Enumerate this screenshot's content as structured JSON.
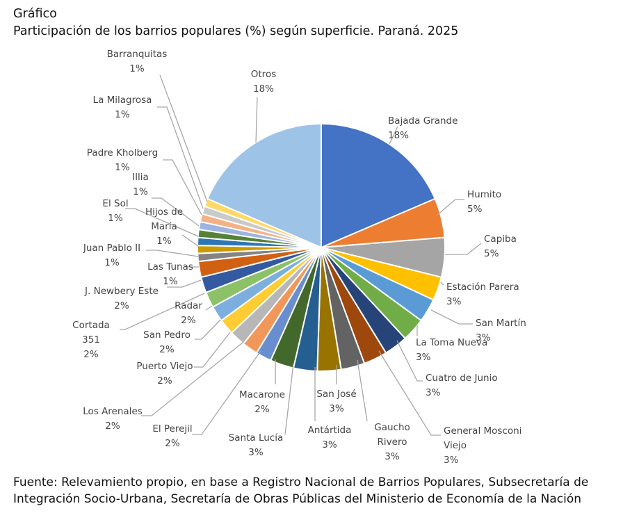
{
  "header": {
    "label": "Gráfico",
    "title": "Participación de los barrios populares (%) según superficie. Paraná. 2025"
  },
  "chart_data": {
    "type": "pie",
    "title": "Participación de los barrios populares (%) según superficie. Paraná. 2025",
    "slices": [
      {
        "label": "Bajada Grande",
        "value": 18,
        "value_label": "18%",
        "color": "#4472C4"
      },
      {
        "label": "Humito",
        "value": 5,
        "value_label": "5%",
        "color": "#ED7D31"
      },
      {
        "label": "Capiba",
        "value": 5,
        "value_label": "5%",
        "color": "#A5A5A5"
      },
      {
        "label": "Estación Parera",
        "value": 3,
        "value_label": "3%",
        "color": "#FFC000"
      },
      {
        "label": "San Martín",
        "value": 3,
        "value_label": "3%",
        "color": "#5B9BD5"
      },
      {
        "label": "La Toma Nueva",
        "value": 3,
        "value_label": "3%",
        "color": "#70AD47"
      },
      {
        "label": "Cuatro de Junio",
        "value": 3,
        "value_label": "3%",
        "color": "#264478"
      },
      {
        "label": "General Mosconi Viejo",
        "value": 3,
        "value_label": "3%",
        "color": "#9E480E"
      },
      {
        "label": "Gaucho Rivero",
        "value": 3,
        "value_label": "3%",
        "color": "#636363"
      },
      {
        "label": "San José",
        "value": 3,
        "value_label": "3%",
        "color": "#997300"
      },
      {
        "label": "Antártida",
        "value": 3,
        "value_label": "3%",
        "color": "#255E91"
      },
      {
        "label": "Santa Lucía",
        "value": 3,
        "value_label": "3%",
        "color": "#43682B"
      },
      {
        "label": "Macarone",
        "value": 2,
        "value_label": "2%",
        "color": "#698ED0"
      },
      {
        "label": "El Perejil",
        "value": 2,
        "value_label": "2%",
        "color": "#F1975A"
      },
      {
        "label": "Los Arenales",
        "value": 2,
        "value_label": "2%",
        "color": "#B7B7B7"
      },
      {
        "label": "Puerto Viejo",
        "value": 2,
        "value_label": "2%",
        "color": "#FFCD33"
      },
      {
        "label": "San Pedro",
        "value": 2,
        "value_label": "2%",
        "color": "#7CAFDD"
      },
      {
        "label": "Radar",
        "value": 2,
        "value_label": "2%",
        "color": "#8CC168"
      },
      {
        "label": "Cortada 351",
        "value": 2,
        "value_label": "2%",
        "color": "#335AA1"
      },
      {
        "label": "J. Newbery Este",
        "value": 2,
        "value_label": "2%",
        "color": "#D26012"
      },
      {
        "label": "Las Tunas",
        "value": 1,
        "value_label": "1%",
        "color": "#848484"
      },
      {
        "label": "Juan Pablo II",
        "value": 1,
        "value_label": "1%",
        "color": "#CC9A00"
      },
      {
        "label": "Hijos de María",
        "value": 1,
        "value_label": "1%",
        "color": "#2E75B6"
      },
      {
        "label": "El Sol",
        "value": 1,
        "value_label": "1%",
        "color": "#548235"
      },
      {
        "label": "Illia",
        "value": 1,
        "value_label": "1%",
        "color": "#9DB3E0"
      },
      {
        "label": "Padre Kholberg",
        "value": 1,
        "value_label": "1%",
        "color": "#F4B183"
      },
      {
        "label": "La Milagrosa",
        "value": 1,
        "value_label": "1%",
        "color": "#C9C9C9"
      },
      {
        "label": "Barranquitas",
        "value": 1,
        "value_label": "1%",
        "color": "#FFD966"
      },
      {
        "label": "Otros",
        "value": 18,
        "value_label": "18%",
        "color": "#9DC3E6"
      }
    ]
  },
  "source": {
    "line1": "Fuente: Relevamiento propio, en base a Registro Nacional de Barrios Populares, Subsecretaría de",
    "line2": "Integración Socio-Urbana, Secretaría de Obras Públicas del Ministerio de Economía de la Nación"
  }
}
